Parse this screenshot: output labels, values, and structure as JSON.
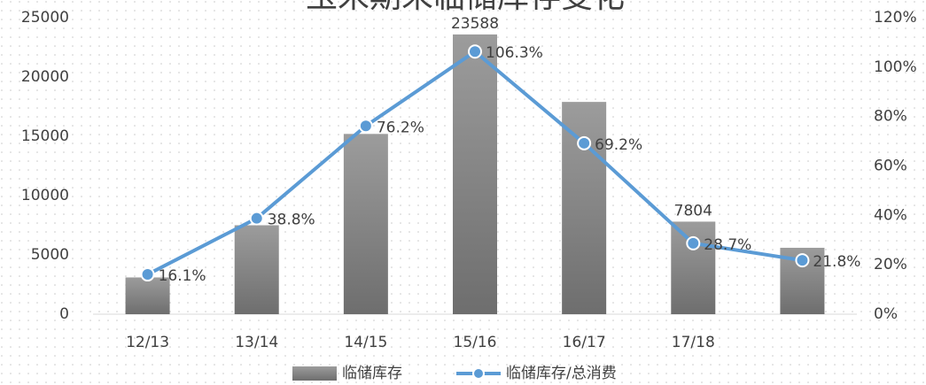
{
  "chart_data": {
    "type": "bar-line",
    "title": "玉米期末临储库存变化",
    "categories": [
      "12/13",
      "13/14",
      "14/15",
      "15/16",
      "16/17",
      "17/18",
      null
    ],
    "series": [
      {
        "name": "临储库存",
        "type": "bar",
        "color": "#8c8c8c",
        "values": [
          3100,
          7500,
          15200,
          23588,
          17900,
          7804,
          5600
        ],
        "value_labels": [
          null,
          null,
          null,
          "23588",
          null,
          "7804",
          null
        ]
      },
      {
        "name": "临储库存/总消费",
        "type": "line",
        "axis": "y2",
        "color": "#5b9bd5",
        "values": [
          16.1,
          38.8,
          76.2,
          106.3,
          69.2,
          28.7,
          21.8
        ],
        "value_labels": [
          "16.1%",
          "38.8%",
          "76.2%",
          "106.3%",
          "69.2%",
          "28.7%",
          "21.8%"
        ]
      }
    ],
    "ylim": [
      0,
      25000
    ],
    "yticks": [
      0,
      5000,
      10000,
      15000,
      20000,
      25000
    ],
    "y2lim": [
      0,
      120
    ],
    "y2ticks": [
      {
        "value": 0,
        "label": "0%"
      },
      {
        "value": 20,
        "label": "20%"
      },
      {
        "value": 40,
        "label": "40%"
      },
      {
        "value": 60,
        "label": "60%"
      },
      {
        "value": 80,
        "label": "80%"
      },
      {
        "value": 100,
        "label": "100%"
      },
      {
        "value": 120,
        "label": "120%"
      }
    ],
    "legend": "bottom"
  }
}
